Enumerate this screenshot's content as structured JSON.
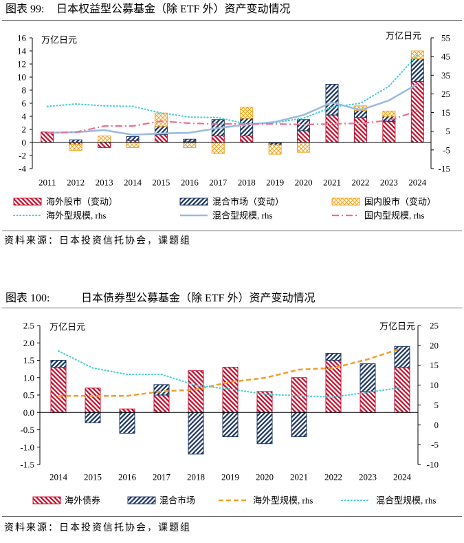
{
  "chart_data": [
    {
      "type": "bar",
      "figure_label": "图表 99:",
      "title": "日本权益型公募基金（除 ETF 外）资产变动情况",
      "ylabel": "万亿日元",
      "ylabel_right": "万亿日元",
      "ylim": [
        -4,
        16
      ],
      "yticks": [
        "16",
        "14",
        "12",
        "10",
        "8",
        "6",
        "4",
        "2",
        "0",
        "-2",
        "-4"
      ],
      "ylim_right": [
        -15,
        55
      ],
      "yticks_right": [
        "55",
        "45",
        "35",
        "25",
        "15",
        "5",
        "-5",
        "-15"
      ],
      "categories": [
        "2011",
        "2012",
        "2013",
        "2014",
        "2015",
        "2016",
        "2017",
        "2018",
        "2019",
        "2020",
        "2021",
        "2022",
        "2023",
        "2024"
      ],
      "stacked": true,
      "grid": false,
      "legend_position": "bottom",
      "series": [
        {
          "name": "海外股市（变动）",
          "color": "#c8102e",
          "values": [
            1.6,
            -0.3,
            -0.8,
            0.3,
            1.2,
            0.1,
            1.0,
            1.0,
            -0.1,
            1.8,
            4.2,
            3.8,
            3.2,
            9.3
          ]
        },
        {
          "name": "混合市场（变动）",
          "color": "#1f3864",
          "values": [
            0,
            0.4,
            0,
            0.6,
            1.3,
            0.4,
            2.5,
            2.7,
            -0.3,
            1.7,
            4.7,
            1.1,
            0.8,
            3.5
          ]
        },
        {
          "name": "国内股市（变动）",
          "color": "#f5a623",
          "values": [
            0,
            -0.9,
            1.0,
            -0.8,
            2.0,
            -0.8,
            -1.7,
            1.7,
            -1.4,
            -1.5,
            0,
            0.7,
            0.8,
            1.2
          ]
        }
      ],
      "line_series": [
        {
          "name": "海外型规模, rhs",
          "color": "#4dd0d4",
          "values": [
            18.3,
            19.6,
            18.6,
            18.3,
            14.8,
            12.6,
            12.3,
            8.9,
            9.6,
            12.0,
            17.9,
            20.0,
            29.1,
            45.9
          ]
        },
        {
          "name": "混合型规模, rhs",
          "color": "#9bbbe0",
          "values": [
            4.2,
            4.5,
            5.6,
            3.1,
            3.8,
            4.2,
            6.7,
            8.5,
            10.0,
            13.7,
            20.4,
            16.3,
            21.5,
            30.3
          ]
        },
        {
          "name": "国内型规模, rhs",
          "color": "#f06e8c",
          "values": [
            4.2,
            4.5,
            7.8,
            7.8,
            10.4,
            9.3,
            8.9,
            8.9,
            8.9,
            8.6,
            8.9,
            9.3,
            10.8,
            15.9
          ]
        }
      ],
      "source": "资料来源：日本投资信托协会，课题组"
    },
    {
      "type": "bar",
      "figure_label": "图表 100:",
      "title": "日本债券型公募基金（除 ETF 外）资产变动情况",
      "ylabel": "万亿日元",
      "ylabel_right": "万亿日元",
      "ylim": [
        -1.5,
        2.5
      ],
      "yticks": [
        "2.5",
        "2.0",
        "1.5",
        "1.0",
        "0.5",
        "0.0",
        "-0.5",
        "-1.0",
        "-1.5"
      ],
      "ylim_right": [
        -10,
        25
      ],
      "yticks_right": [
        "25",
        "20",
        "15",
        "10",
        "5",
        "0",
        "-5",
        "-10"
      ],
      "categories": [
        "2014",
        "2015",
        "2016",
        "2017",
        "2018",
        "2019",
        "2020",
        "2021",
        "2022",
        "2023",
        "2024"
      ],
      "stacked": true,
      "grid": false,
      "legend_position": "bottom",
      "series": [
        {
          "name": "海外债券",
          "color": "#c8102e",
          "values": [
            1.3,
            0.7,
            0.1,
            0.5,
            1.2,
            1.3,
            0.6,
            1.0,
            1.5,
            0.6,
            1.3
          ]
        },
        {
          "name": "混合市场",
          "color": "#1f3864",
          "values": [
            0.2,
            -0.3,
            -0.6,
            0.3,
            -1.2,
            -0.7,
            -0.9,
            -0.7,
            0.2,
            0.8,
            0.6
          ]
        }
      ],
      "line_series": [
        {
          "name": "海外型规模, rhs",
          "color": "#f0a030",
          "values": [
            7.3,
            7.3,
            7.3,
            8.4,
            8.9,
            10.8,
            11.8,
            13.9,
            14.3,
            16.5,
            19.3
          ]
        },
        {
          "name": "混合型规模, rhs",
          "color": "#4dd0d4",
          "values": [
            18.6,
            14.3,
            12.7,
            12.7,
            9.9,
            9.0,
            7.7,
            7.3,
            7.0,
            8.2,
            9.4
          ]
        }
      ],
      "source": "资料来源：日本投资信托协会，课题组"
    }
  ]
}
